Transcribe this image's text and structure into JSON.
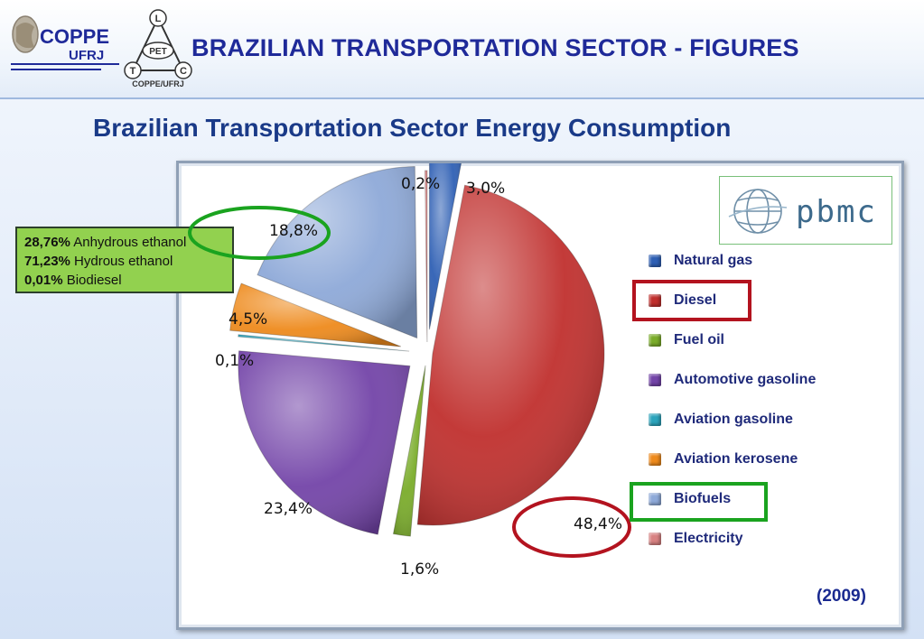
{
  "header": {
    "title": "BRAZILIAN TRANSPORTATION SECTOR - FIGURES",
    "coppe_logo_text": "COPPE",
    "ufrj_logo_text": "UFRJ",
    "pet_logo_letters": [
      "L",
      "T",
      "C"
    ],
    "pet_logo_center": "PET",
    "pet_logo_caption": "COPPE/UFRJ"
  },
  "slide_title": "Brazilian Transportation Sector Energy Consumption",
  "pbmc_logo_text": "pbmc",
  "year": "(2009)",
  "ethanol_box": {
    "lines": [
      {
        "value": "28,76%",
        "label": "Anhydrous ethanol"
      },
      {
        "value": "71,23%",
        "label": "Hydrous ethanol"
      },
      {
        "value": "0,01%",
        "label": "Biodiesel"
      }
    ]
  },
  "colors": {
    "Natural gas": "#2e5fb4",
    "Diesel": "#c0302e",
    "Fuel oil": "#7aac2a",
    "Automotive gasoline": "#7344a8",
    "Aviation gasoline": "#2ca4bc",
    "Aviation kerosene": "#ee8a1c",
    "Biofuels": "#8ea9d8",
    "Electricity": "#d88282",
    "highlight_red": "#b3131f",
    "highlight_green": "#1aa31f"
  },
  "chart_data": {
    "type": "pie",
    "title": "",
    "slices": [
      {
        "name": "Natural gas",
        "value": 3.0,
        "label": "3,0%"
      },
      {
        "name": "Diesel",
        "value": 48.4,
        "label": "48,4%"
      },
      {
        "name": "Fuel oil",
        "value": 1.6,
        "label": "1,6%"
      },
      {
        "name": "Automotive gasoline",
        "value": 23.4,
        "label": "23,4%"
      },
      {
        "name": "Aviation gasoline",
        "value": 0.1,
        "label": "0,1%"
      },
      {
        "name": "Aviation kerosene",
        "value": 4.5,
        "label": "4,5%"
      },
      {
        "name": "Biofuels",
        "value": 18.8,
        "label": "18,8%"
      },
      {
        "name": "Electricity",
        "value": 0.2,
        "label": "0,2%"
      }
    ],
    "legend": [
      "Natural gas",
      "Diesel",
      "Fuel oil",
      "Automotive gasoline",
      "Aviation gasoline",
      "Aviation kerosene",
      "Biofuels",
      "Electricity"
    ],
    "legend_position": "right",
    "exploded": true,
    "highlighted": [
      "Diesel",
      "Biofuels"
    ]
  }
}
